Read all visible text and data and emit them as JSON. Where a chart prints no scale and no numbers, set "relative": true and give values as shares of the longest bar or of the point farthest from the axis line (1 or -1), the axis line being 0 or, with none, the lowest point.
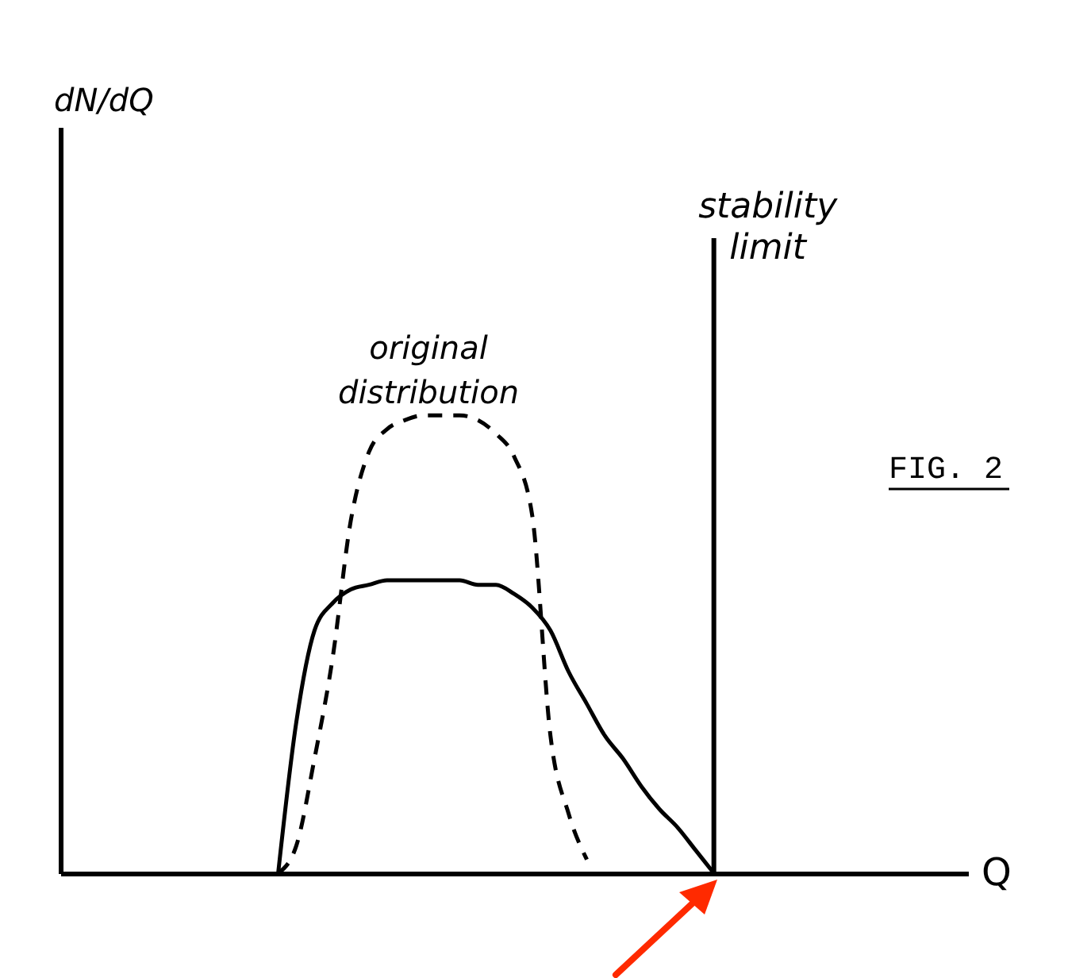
{
  "chart_data": {
    "type": "line",
    "relative": true,
    "xlabel": "Q",
    "categories": [
      null,
      null,
      null,
      null,
      null,
      null,
      null,
      null,
      null,
      null,
      null,
      null,
      null,
      null,
      null,
      null,
      null,
      null,
      null,
      null,
      null,
      null,
      null,
      null,
      null,
      null,
      null,
      null,
      null,
      null,
      null,
      null,
      null,
      null,
      null,
      null,
      null,
      null,
      null,
      null,
      null,
      null,
      null,
      null,
      null,
      null,
      null,
      null,
      null,
      null,
      null
    ],
    "series": [
      {
        "color": "#000000",
        "line_style": "solid",
        "values": [
          null,
          null,
          null,
          null,
          null,
          null,
          null,
          null,
          null,
          null,
          null,
          null,
          0,
          0.33,
          0.53,
          0.59,
          0.62,
          0.63,
          0.64,
          0.64,
          0.64,
          0.64,
          0.64,
          0.63,
          0.63,
          0.61,
          0.58,
          0.53,
          0.44,
          0.37,
          0.3,
          0.25,
          0.19,
          0.14,
          0.1,
          0.05,
          0,
          null,
          null,
          null,
          null,
          null,
          null,
          null,
          null,
          null,
          null,
          null,
          null,
          null,
          null
        ]
      },
      {
        "color": "#000000",
        "line_style": "dashed",
        "values": [
          null,
          null,
          null,
          null,
          null,
          null,
          null,
          null,
          null,
          null,
          null,
          null,
          0,
          0.06,
          0.25,
          0.47,
          0.77,
          0.92,
          0.97,
          0.99,
          1,
          1,
          1,
          0.99,
          0.96,
          0.91,
          0.78,
          0.3,
          0.13,
          0.03,
          null,
          null,
          null,
          null,
          null,
          null,
          null,
          null,
          null,
          null,
          null,
          null,
          null,
          null,
          null,
          null,
          null,
          null,
          null,
          null,
          null
        ]
      }
    ],
    "ref_lines": [
      {
        "axis": "x",
        "label": "stability limit",
        "color": "#000000"
      }
    ],
    "annotations": [
      "original distribution",
      "FIG. 2",
      "dN/dQ"
    ]
  }
}
